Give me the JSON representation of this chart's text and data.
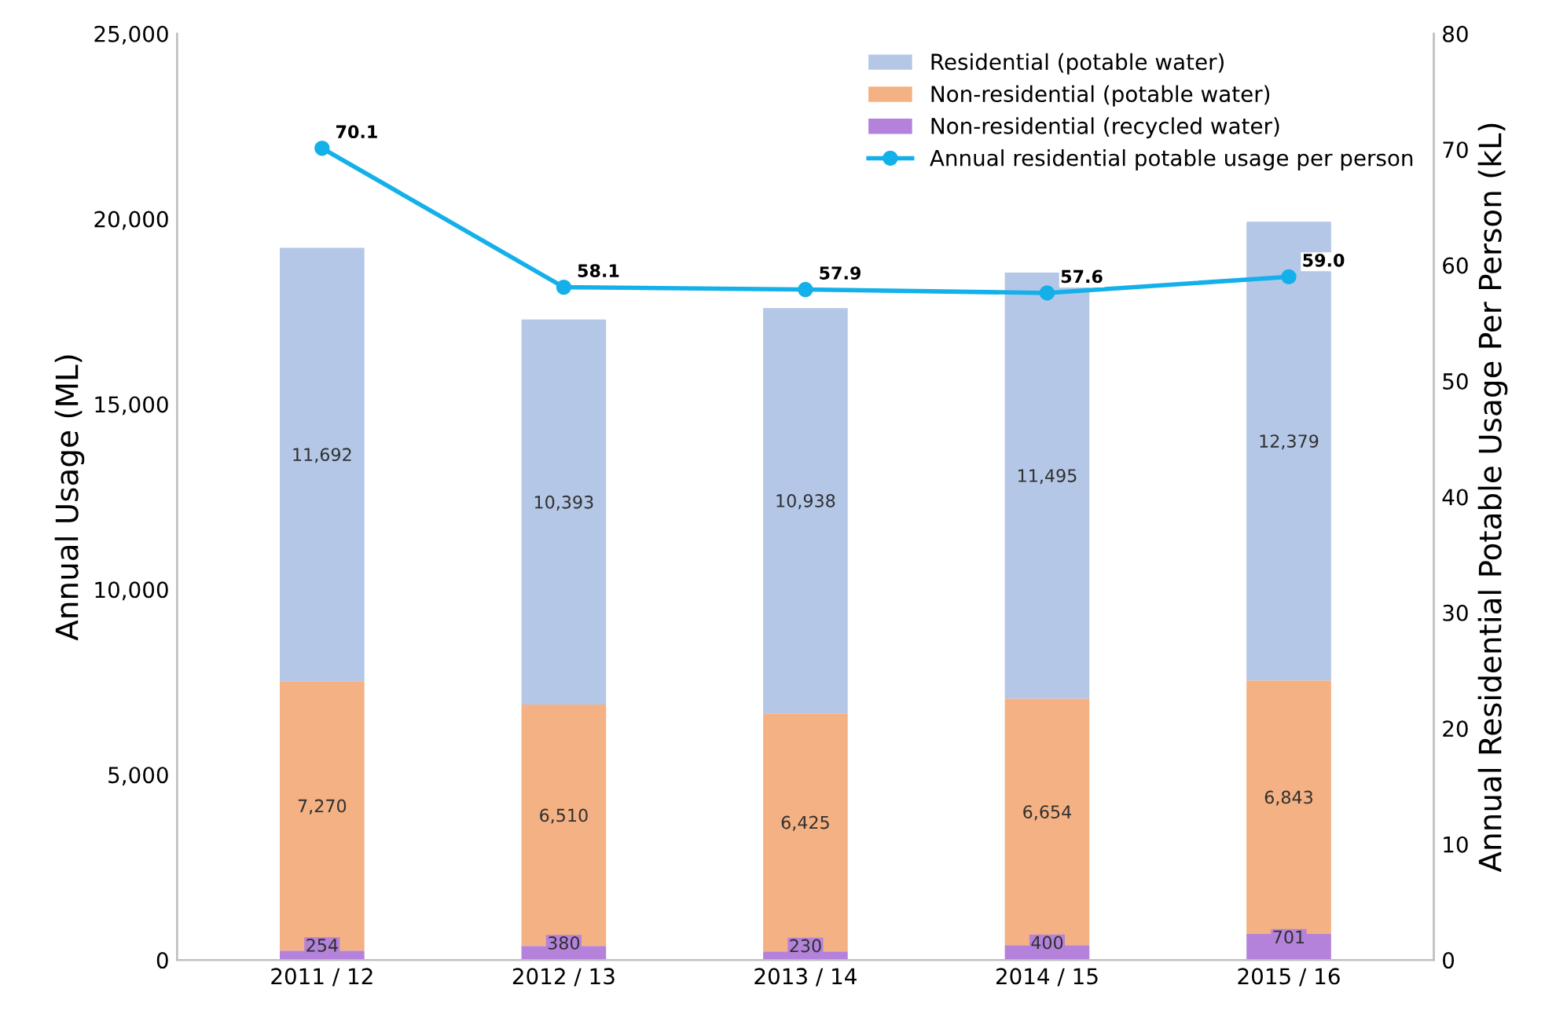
{
  "chart_data": {
    "type": "bar",
    "stacked": true,
    "categories": [
      "2011 / 12",
      "2012 / 13",
      "2013 / 14",
      "2014 / 15",
      "2015 / 16"
    ],
    "ylabel": "Annual Usage (ML)",
    "y2label": "Annual Residential Potable Usage Per Person (kL)",
    "ylim": [
      0,
      25000
    ],
    "yticks": [
      {
        "value": 0,
        "label": "0"
      },
      {
        "value": 5000,
        "label": "5,000"
      },
      {
        "value": 10000,
        "label": "10,000"
      },
      {
        "value": 15000,
        "label": "15,000"
      },
      {
        "value": 20000,
        "label": "20,000"
      },
      {
        "value": 25000,
        "label": "25,000"
      }
    ],
    "y2lim": [
      0,
      80
    ],
    "y2ticks": [
      0,
      10,
      20,
      30,
      40,
      50,
      60,
      70,
      80
    ],
    "series": [
      {
        "name": "Non-residential (recycled water)",
        "color": "#b482da",
        "values": [
          254,
          380,
          230,
          400,
          701
        ],
        "value_labels": [
          "254",
          "380",
          "230",
          "400",
          "701"
        ]
      },
      {
        "name": "Non-residential (potable water)",
        "color": "#f4b183",
        "values": [
          7270,
          6510,
          6425,
          6654,
          6843
        ],
        "value_labels": [
          "7,270",
          "6,510",
          "6,425",
          "6,654",
          "6,843"
        ]
      },
      {
        "name": "Residential (potable water)",
        "color": "#b4c7e7",
        "values": [
          11692,
          10393,
          10938,
          11495,
          12379
        ],
        "value_labels": [
          "11,692",
          "10,393",
          "10,938",
          "11,495",
          "12,379"
        ]
      },
      {
        "name": "Annual residential potable usage per person",
        "type": "line",
        "axis": "y2",
        "color": "#13b0ea",
        "marker": "circle",
        "values": [
          70.1,
          58.1,
          57.9,
          57.6,
          59.0
        ],
        "value_labels": [
          "70.1",
          "58.1",
          "57.9",
          "57.6",
          "59.0"
        ]
      }
    ],
    "legend": "top right",
    "grid": false
  }
}
